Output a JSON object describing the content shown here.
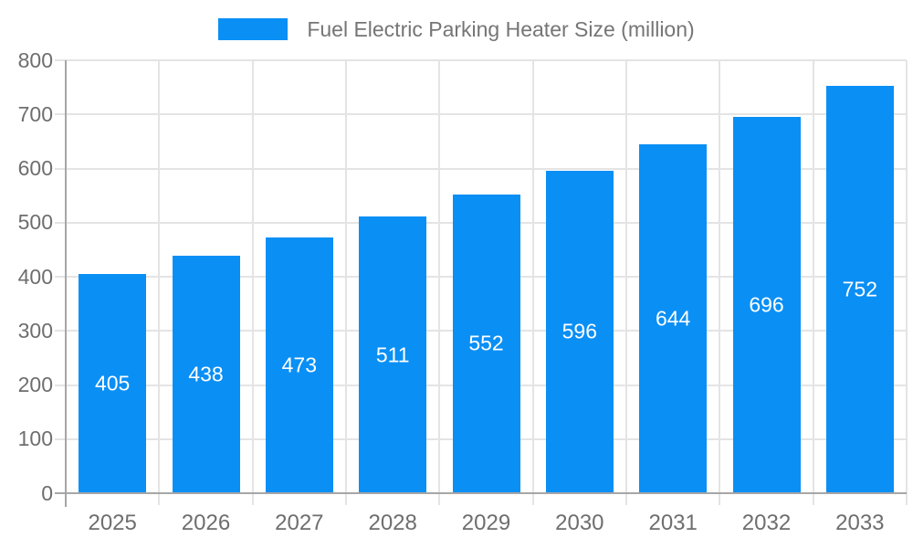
{
  "chart_data": {
    "type": "bar",
    "title": "Fuel Electric Parking Heater Size (million)",
    "categories": [
      "2025",
      "2026",
      "2027",
      "2028",
      "2029",
      "2030",
      "2031",
      "2032",
      "2033"
    ],
    "values": [
      405,
      438,
      473,
      511,
      552,
      596,
      644,
      696,
      752
    ],
    "value_labels": [
      "405",
      "438",
      "473",
      "511",
      "552",
      "596",
      "644",
      "696",
      "752"
    ],
    "xlabel": "",
    "ylabel": "",
    "ylim": [
      0,
      800
    ],
    "yticks": [
      0,
      100,
      200,
      300,
      400,
      500,
      600,
      700,
      800
    ],
    "grid": true,
    "legend_position": "top-center",
    "colors": {
      "bar": "#0a8ff5",
      "bar_value_text": "#ffffff",
      "axis_text": "#6e6e6e",
      "legend_text": "#757575",
      "gridline": "#e4e4e4",
      "axis_line": "#a6a6a6",
      "background": "#ffffff"
    }
  }
}
